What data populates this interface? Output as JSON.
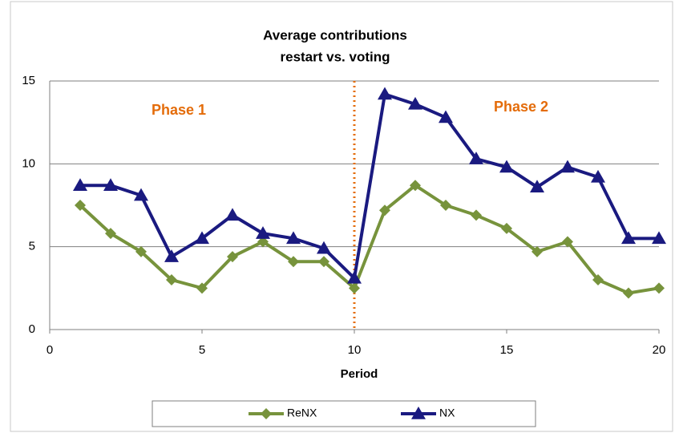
{
  "chart_data": {
    "type": "line",
    "title_lines": [
      "Average contributions",
      "restart vs. voting"
    ],
    "x_label": "Period",
    "x": [
      1,
      2,
      3,
      4,
      5,
      6,
      7,
      8,
      9,
      10,
      11,
      12,
      13,
      14,
      15,
      16,
      17,
      18,
      19,
      20
    ],
    "series": [
      {
        "name": "ReNX",
        "color": "#77933c",
        "marker": "diamond",
        "values": [
          7.5,
          5.8,
          4.7,
          3.0,
          2.5,
          4.4,
          5.3,
          4.1,
          4.1,
          2.5,
          7.2,
          8.7,
          7.5,
          6.9,
          6.1,
          4.7,
          5.3,
          3.0,
          2.2,
          2.5
        ]
      },
      {
        "name": "NX",
        "color": "#1a1a80",
        "marker": "triangle",
        "values": [
          8.7,
          8.7,
          8.1,
          4.4,
          5.5,
          6.9,
          5.8,
          5.5,
          4.9,
          3.1,
          14.2,
          13.6,
          12.8,
          10.3,
          9.8,
          8.6,
          9.8,
          9.2,
          5.5,
          5.5
        ]
      }
    ],
    "xlim": [
      0,
      20
    ],
    "xticks": [
      0,
      5,
      10,
      15,
      20
    ],
    "ylim": [
      0,
      15
    ],
    "yticks": [
      0,
      5,
      10,
      15
    ],
    "grid": true,
    "vline": {
      "x": 10,
      "color": "#e46c0a"
    },
    "annotations": [
      {
        "text": "Phase 1",
        "color": "#e46c0a"
      },
      {
        "text": "Phase 2",
        "color": "#e46c0a"
      }
    ],
    "legend": "bottom"
  }
}
